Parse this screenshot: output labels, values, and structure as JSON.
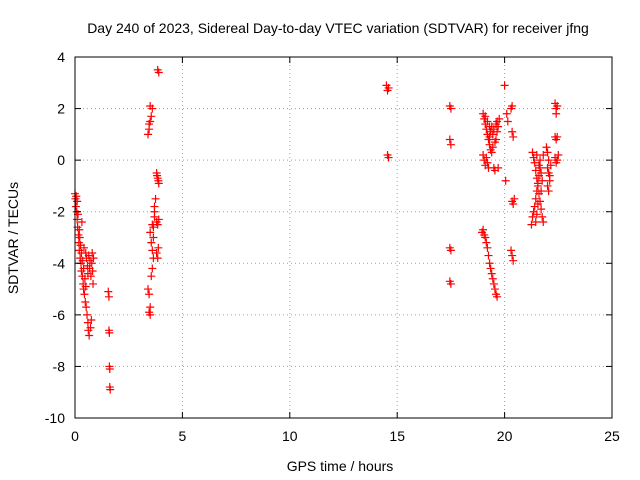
{
  "chart_data": {
    "type": "scatter",
    "title": "Day 240 of 2023, Sidereal Day-to-day VTEC variation (SDTVAR) for receiver jfng",
    "xlabel": "GPS time / hours",
    "ylabel": "SDTVAR / TECUs",
    "xlim": [
      0,
      25
    ],
    "ylim": [
      -10,
      4
    ],
    "xticks": [
      0,
      5,
      10,
      15,
      20,
      25
    ],
    "yticks": [
      -10,
      -8,
      -6,
      -4,
      -2,
      0,
      2,
      4
    ],
    "grid": true,
    "marker": "+",
    "color": "#ff0000",
    "series": [
      {
        "name": "SDTVAR",
        "points": [
          [
            0.0,
            -1.3
          ],
          [
            0.02,
            -1.5
          ],
          [
            0.04,
            -1.8
          ],
          [
            0.06,
            -1.4
          ],
          [
            0.08,
            -2.0
          ],
          [
            0.1,
            -2.3
          ],
          [
            0.1,
            -1.6
          ],
          [
            0.12,
            -2.6
          ],
          [
            0.14,
            -2.1
          ],
          [
            0.16,
            -2.9
          ],
          [
            0.18,
            -3.2
          ],
          [
            0.2,
            -2.7
          ],
          [
            0.2,
            -3.5
          ],
          [
            0.22,
            -3.0
          ],
          [
            0.24,
            -3.8
          ],
          [
            0.26,
            -3.3
          ],
          [
            0.28,
            -4.0
          ],
          [
            0.3,
            -3.6
          ],
          [
            0.3,
            -4.3
          ],
          [
            0.32,
            -2.4
          ],
          [
            0.34,
            -4.5
          ],
          [
            0.36,
            -3.9
          ],
          [
            0.38,
            -4.8
          ],
          [
            0.4,
            -4.2
          ],
          [
            0.4,
            -5.0
          ],
          [
            0.42,
            -3.4
          ],
          [
            0.44,
            -5.2
          ],
          [
            0.46,
            -4.6
          ],
          [
            0.48,
            -5.5
          ],
          [
            0.5,
            -3.6
          ],
          [
            0.5,
            -4.9
          ],
          [
            0.52,
            -5.7
          ],
          [
            0.54,
            -3.8
          ],
          [
            0.56,
            -6.0
          ],
          [
            0.58,
            -4.1
          ],
          [
            0.6,
            -6.3
          ],
          [
            0.6,
            -4.4
          ],
          [
            0.62,
            -6.6
          ],
          [
            0.64,
            -3.7
          ],
          [
            0.66,
            -6.8
          ],
          [
            0.68,
            -4.2
          ],
          [
            0.7,
            -3.9
          ],
          [
            0.72,
            -6.5
          ],
          [
            0.74,
            -4.5
          ],
          [
            0.76,
            -6.2
          ],
          [
            0.78,
            -4.0
          ],
          [
            0.8,
            -3.6
          ],
          [
            0.82,
            -4.3
          ],
          [
            0.84,
            -4.8
          ],
          [
            0.86,
            -3.8
          ],
          [
            1.55,
            -5.1
          ],
          [
            1.58,
            -5.3
          ],
          [
            1.58,
            -6.6
          ],
          [
            1.6,
            -6.7
          ],
          [
            1.6,
            -8.0
          ],
          [
            1.62,
            -8.1
          ],
          [
            1.62,
            -8.8
          ],
          [
            1.64,
            -8.9
          ],
          [
            3.4,
            -5.0
          ],
          [
            3.45,
            -5.2
          ],
          [
            3.45,
            -5.9
          ],
          [
            3.5,
            -5.7
          ],
          [
            3.5,
            -6.0
          ],
          [
            3.55,
            -4.5
          ],
          [
            3.6,
            -4.2
          ],
          [
            3.6,
            -3.5
          ],
          [
            3.65,
            -3.0
          ],
          [
            3.65,
            -2.6
          ],
          [
            3.7,
            -2.2
          ],
          [
            3.7,
            -1.8
          ],
          [
            3.75,
            -1.5
          ],
          [
            3.5,
            -2.8
          ],
          [
            3.55,
            -3.2
          ],
          [
            3.6,
            -2.5
          ],
          [
            3.65,
            -3.8
          ],
          [
            3.7,
            -2.0
          ],
          [
            3.4,
            1.0
          ],
          [
            3.45,
            1.2
          ],
          [
            3.5,
            1.5
          ],
          [
            3.55,
            1.7
          ],
          [
            3.6,
            2.0
          ],
          [
            3.5,
            2.1
          ],
          [
            3.45,
            1.4
          ],
          [
            3.85,
            3.5
          ],
          [
            3.9,
            3.4
          ],
          [
            3.8,
            -0.5
          ],
          [
            3.85,
            -0.7
          ],
          [
            3.9,
            -0.9
          ],
          [
            3.82,
            -0.6
          ],
          [
            3.88,
            -0.8
          ],
          [
            3.8,
            -2.4
          ],
          [
            3.85,
            -2.5
          ],
          [
            3.9,
            -2.3
          ],
          [
            3.8,
            -3.6
          ],
          [
            3.85,
            -3.8
          ],
          [
            3.88,
            -3.4
          ],
          [
            14.5,
            2.9
          ],
          [
            14.55,
            2.7
          ],
          [
            14.6,
            2.8
          ],
          [
            14.55,
            0.2
          ],
          [
            14.6,
            0.1
          ],
          [
            17.45,
            2.1
          ],
          [
            17.5,
            2.0
          ],
          [
            17.45,
            0.8
          ],
          [
            17.5,
            0.6
          ],
          [
            17.45,
            -3.4
          ],
          [
            17.5,
            -3.5
          ],
          [
            17.45,
            -4.7
          ],
          [
            17.5,
            -4.8
          ],
          [
            18.95,
            -2.8
          ],
          [
            19.0,
            -2.7
          ],
          [
            19.05,
            -2.9
          ],
          [
            19.1,
            -3.0
          ],
          [
            19.15,
            -3.2
          ],
          [
            19.2,
            -3.4
          ],
          [
            19.25,
            -3.7
          ],
          [
            19.3,
            -4.0
          ],
          [
            19.35,
            -4.2
          ],
          [
            19.4,
            -4.4
          ],
          [
            19.45,
            -4.6
          ],
          [
            19.5,
            -4.8
          ],
          [
            19.55,
            -5.0
          ],
          [
            19.6,
            -5.2
          ],
          [
            19.65,
            -5.3
          ],
          [
            19.0,
            1.8
          ],
          [
            19.05,
            1.6
          ],
          [
            19.1,
            1.4
          ],
          [
            19.15,
            1.2
          ],
          [
            19.2,
            1.0
          ],
          [
            19.25,
            0.8
          ],
          [
            19.3,
            0.6
          ],
          [
            19.35,
            0.4
          ],
          [
            19.0,
            0.2
          ],
          [
            19.05,
            0.0
          ],
          [
            19.1,
            -0.2
          ],
          [
            19.15,
            0.1
          ],
          [
            19.2,
            -0.1
          ],
          [
            19.25,
            -0.3
          ],
          [
            19.3,
            0.9
          ],
          [
            19.35,
            1.1
          ],
          [
            19.4,
            1.3
          ],
          [
            19.45,
            1.0
          ],
          [
            19.5,
            1.2
          ],
          [
            19.55,
            0.7
          ],
          [
            19.6,
            1.4
          ],
          [
            19.65,
            1.1
          ],
          [
            19.4,
            0.3
          ],
          [
            19.45,
            0.5
          ],
          [
            19.5,
            -0.3
          ],
          [
            19.55,
            -0.4
          ],
          [
            19.6,
            0.8
          ],
          [
            19.65,
            1.5
          ],
          [
            19.7,
            1.3
          ],
          [
            19.75,
            1.6
          ],
          [
            19.7,
            -0.3
          ],
          [
            19.1,
            1.7
          ],
          [
            19.2,
            1.5
          ],
          [
            19.3,
            1.3
          ],
          [
            20.0,
            2.9
          ],
          [
            20.05,
            -0.8
          ],
          [
            20.1,
            1.8
          ],
          [
            20.15,
            1.5
          ],
          [
            20.3,
            2.0
          ],
          [
            20.35,
            2.1
          ],
          [
            20.35,
            1.1
          ],
          [
            20.4,
            0.9
          ],
          [
            20.35,
            -1.6
          ],
          [
            20.4,
            -1.7
          ],
          [
            20.45,
            -1.5
          ],
          [
            20.3,
            -3.5
          ],
          [
            20.35,
            -3.7
          ],
          [
            20.4,
            -3.9
          ],
          [
            21.25,
            -2.5
          ],
          [
            21.3,
            -2.2
          ],
          [
            21.35,
            -2.0
          ],
          [
            21.4,
            -1.8
          ],
          [
            21.45,
            -1.5
          ],
          [
            21.5,
            -1.2
          ],
          [
            21.55,
            -0.9
          ],
          [
            21.6,
            -0.6
          ],
          [
            21.65,
            -0.3
          ],
          [
            21.3,
            0.3
          ],
          [
            21.35,
            0.1
          ],
          [
            21.4,
            -0.1
          ],
          [
            21.45,
            -0.4
          ],
          [
            21.5,
            -0.7
          ],
          [
            21.55,
            -1.0
          ],
          [
            21.6,
            -1.3
          ],
          [
            21.65,
            -1.6
          ],
          [
            21.7,
            -1.9
          ],
          [
            21.75,
            -2.2
          ],
          [
            21.8,
            -2.4
          ],
          [
            21.45,
            -2.4
          ],
          [
            21.5,
            -2.1
          ],
          [
            21.55,
            -1.7
          ],
          [
            21.6,
            -0.2
          ],
          [
            21.65,
            0.0
          ],
          [
            21.7,
            -0.5
          ],
          [
            21.75,
            -0.8
          ],
          [
            21.8,
            0.2
          ],
          [
            21.5,
            0.2
          ],
          [
            21.7,
            -1.2
          ],
          [
            21.95,
            0.5
          ],
          [
            22.0,
            0.3
          ],
          [
            22.05,
            0.0
          ],
          [
            22.0,
            -0.3
          ],
          [
            22.05,
            -0.5
          ],
          [
            22.1,
            -0.6
          ],
          [
            22.0,
            -1.0
          ],
          [
            22.05,
            -1.2
          ],
          [
            22.1,
            -0.8
          ],
          [
            22.15,
            -0.2
          ],
          [
            22.35,
            2.2
          ],
          [
            22.4,
            2.0
          ],
          [
            22.45,
            2.1
          ],
          [
            22.4,
            1.8
          ],
          [
            22.35,
            0.9
          ],
          [
            22.4,
            0.8
          ],
          [
            22.45,
            0.9
          ],
          [
            22.35,
            0.1
          ],
          [
            22.4,
            -0.1
          ],
          [
            22.45,
            0.0
          ],
          [
            22.5,
            0.2
          ]
        ]
      }
    ]
  }
}
